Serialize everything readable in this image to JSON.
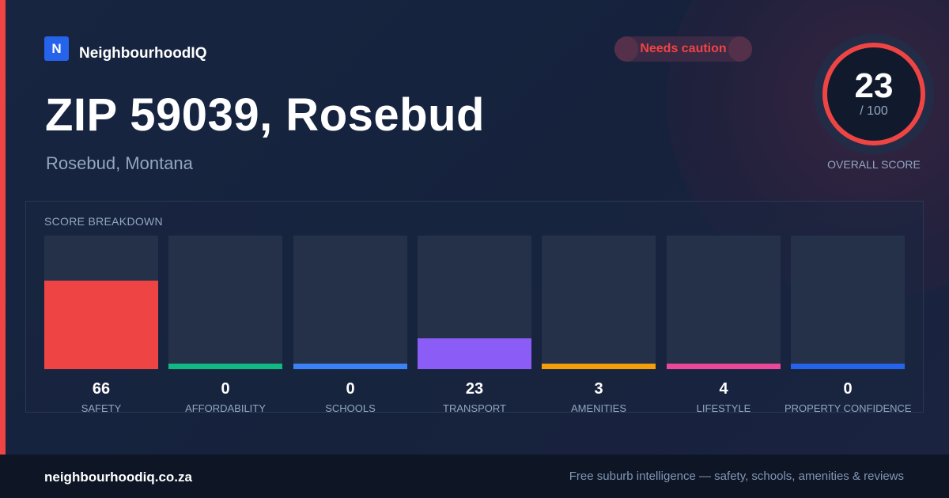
{
  "brand": {
    "logo_letter": "N",
    "name": "NeighbourhoodIQ",
    "accent": "#2563eb"
  },
  "status_badge": {
    "label": "Needs caution",
    "color": "#ef4444"
  },
  "header": {
    "title": "ZIP 59039, Rosebud",
    "subtitle": "Rosebud, Montana"
  },
  "overall": {
    "score": "23",
    "max_label": "/ 100",
    "label": "OVERALL SCORE",
    "score_fraction": 0.23,
    "ring_color": "#ef4444"
  },
  "breakdown": {
    "title": "SCORE BREAKDOWN",
    "max": 100,
    "items": [
      {
        "label": "SAFETY",
        "value": 66,
        "color": "#ef4444"
      },
      {
        "label": "AFFORDABILITY",
        "value": 0,
        "color": "#10b981"
      },
      {
        "label": "SCHOOLS",
        "value": 0,
        "color": "#3b82f6"
      },
      {
        "label": "TRANSPORT",
        "value": 23,
        "color": "#8b5cf6"
      },
      {
        "label": "AMENITIES",
        "value": 3,
        "color": "#f59e0b"
      },
      {
        "label": "LIFESTYLE",
        "value": 4,
        "color": "#ec4899"
      },
      {
        "label": "PROPERTY CONFIDENCE",
        "value": 0,
        "color": "#2563eb"
      }
    ]
  },
  "footer": {
    "site": "neighbourhoodiq.co.za",
    "tagline": "Free suburb intelligence — safety, schools, amenities & reviews"
  }
}
